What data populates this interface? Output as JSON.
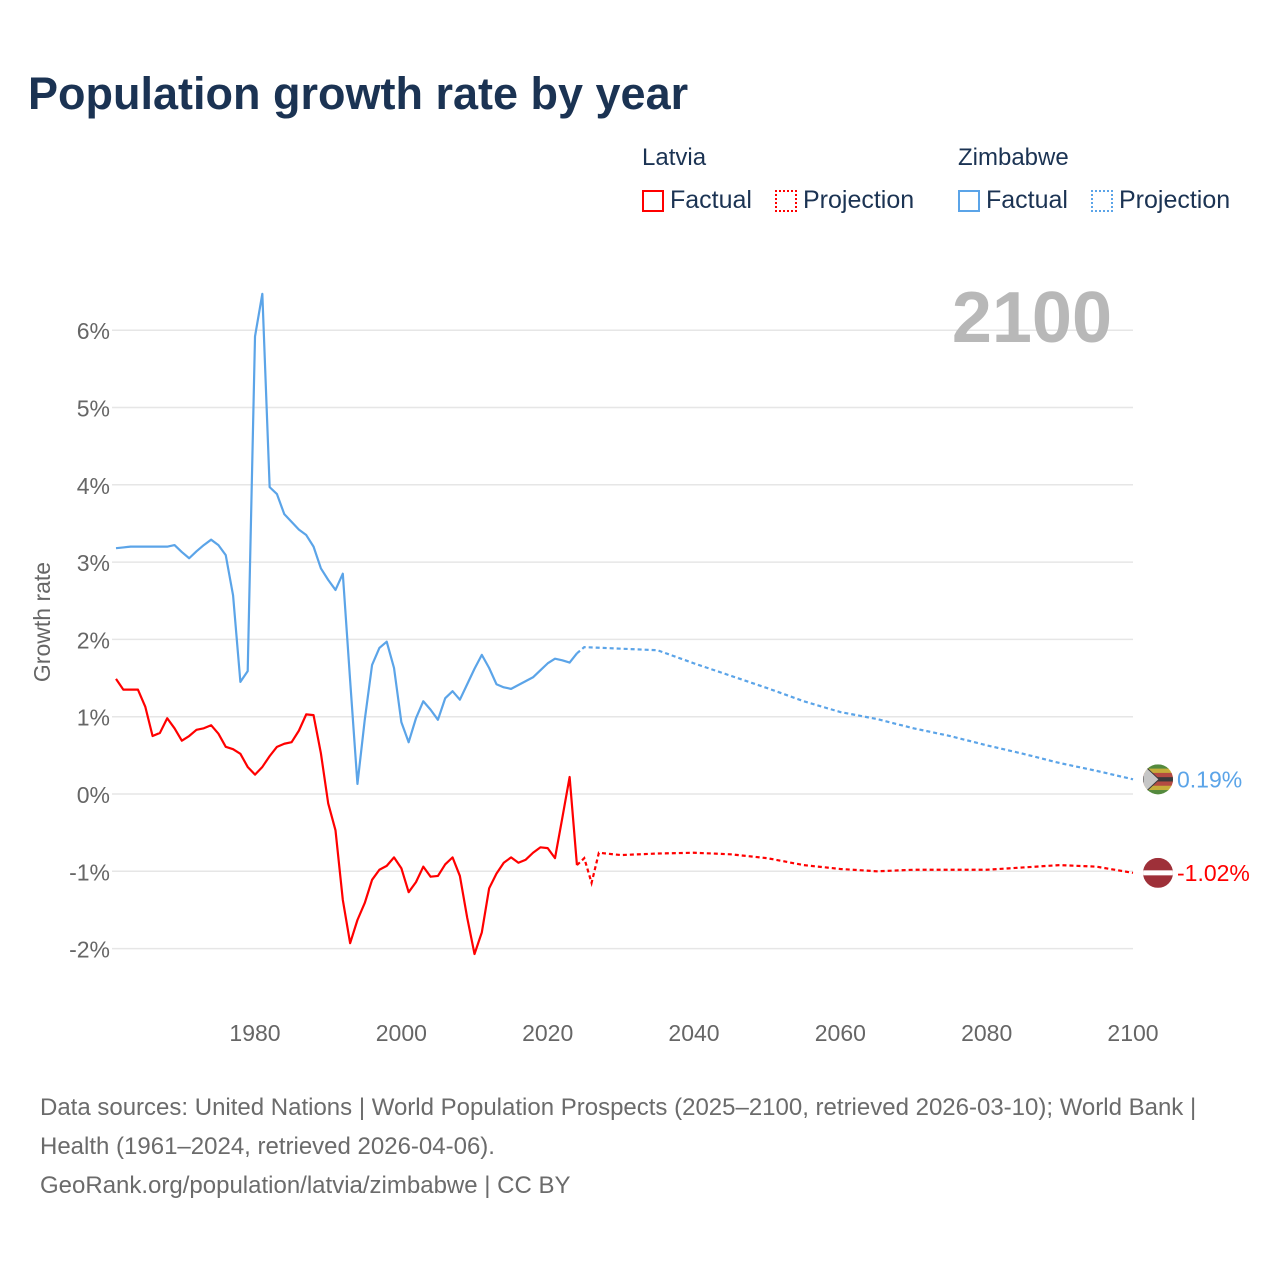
{
  "chart_data": {
    "type": "line",
    "title": "Population growth rate by year",
    "ylabel": "Growth rate",
    "xlabel": "",
    "year_display": "2100",
    "xlim": [
      1961,
      2100
    ],
    "ylim": [
      -2.6,
      6.6
    ],
    "x_ticks": [
      1980,
      2000,
      2020,
      2040,
      2060,
      2080,
      2100
    ],
    "y_ticks": [
      {
        "v": 6,
        "label": "6%"
      },
      {
        "v": 5,
        "label": "5%"
      },
      {
        "v": 4,
        "label": "4%"
      },
      {
        "v": 3,
        "label": "3%"
      },
      {
        "v": 2,
        "label": "2%"
      },
      {
        "v": 1,
        "label": "1%"
      },
      {
        "v": 0,
        "label": "0%"
      },
      {
        "v": -1,
        "label": "-1%"
      },
      {
        "v": -2,
        "label": "-2%"
      }
    ],
    "legend": {
      "groups": [
        {
          "name": "Latvia",
          "color": "#ff0000",
          "factual": "Factual",
          "projection": "Projection"
        },
        {
          "name": "Zimbabwe",
          "color": "#5ba4e8",
          "factual": "Factual",
          "projection": "Projection"
        }
      ]
    },
    "series": [
      {
        "name": "Zimbabwe",
        "color": "#5ba4e8",
        "end_label": "0.19%",
        "factual": {
          "start": 1961,
          "values": [
            3.18,
            3.19,
            3.2,
            3.2,
            3.2,
            3.2,
            3.2,
            3.2,
            3.22,
            3.13,
            3.05,
            3.14,
            3.22,
            3.29,
            3.22,
            3.09,
            2.57,
            1.45,
            1.59,
            5.92,
            6.47,
            3.97,
            3.88,
            3.62,
            3.52,
            3.42,
            3.35,
            3.2,
            2.92,
            2.77,
            2.64,
            2.85,
            1.47,
            0.13,
            0.96,
            1.67,
            1.89,
            1.97,
            1.63,
            0.93,
            0.67,
            0.98,
            1.2,
            1.09,
            0.96,
            1.24,
            1.33,
            1.22,
            1.42,
            1.62,
            1.8,
            1.63,
            1.42,
            1.38,
            1.36,
            1.41,
            1.46,
            1.51,
            1.6,
            1.69,
            1.75,
            1.73,
            1.7,
            1.82
          ]
        },
        "projection": {
          "years": [
            2025,
            2030,
            2035,
            2040,
            2045,
            2050,
            2055,
            2060,
            2065,
            2070,
            2075,
            2080,
            2085,
            2090,
            2095,
            2100
          ],
          "values": [
            1.9,
            1.88,
            1.86,
            1.69,
            1.53,
            1.37,
            1.2,
            1.06,
            0.97,
            0.85,
            0.75,
            0.63,
            0.52,
            0.4,
            0.3,
            0.19
          ]
        }
      },
      {
        "name": "Latvia",
        "color": "#ff0000",
        "end_label": "-1.02%",
        "factual": {
          "start": 1961,
          "values": [
            1.49,
            1.35,
            1.35,
            1.35,
            1.13,
            0.75,
            0.79,
            0.98,
            0.85,
            0.69,
            0.75,
            0.83,
            0.85,
            0.89,
            0.78,
            0.61,
            0.58,
            0.52,
            0.35,
            0.25,
            0.35,
            0.49,
            0.61,
            0.65,
            0.67,
            0.82,
            1.03,
            1.02,
            0.53,
            -0.12,
            -0.47,
            -1.37,
            -1.93,
            -1.63,
            -1.41,
            -1.11,
            -0.98,
            -0.93,
            -0.82,
            -0.96,
            -1.27,
            -1.14,
            -0.94,
            -1.07,
            -1.06,
            -0.91,
            -0.82,
            -1.06,
            -1.6,
            -2.07,
            -1.79,
            -1.22,
            -1.03,
            -0.89,
            -0.82,
            -0.89,
            -0.85,
            -0.76,
            -0.69,
            -0.7,
            -0.83,
            -0.31,
            0.22,
            -0.92
          ]
        },
        "projection": {
          "years": [
            2025,
            2026,
            2027,
            2030,
            2035,
            2040,
            2045,
            2050,
            2055,
            2060,
            2065,
            2070,
            2075,
            2080,
            2085,
            2090,
            2095,
            2100
          ],
          "values": [
            -0.83,
            -1.15,
            -0.76,
            -0.79,
            -0.77,
            -0.76,
            -0.78,
            -0.83,
            -0.92,
            -0.97,
            -1.0,
            -0.98,
            -0.98,
            -0.98,
            -0.95,
            -0.92,
            -0.94,
            -1.02
          ]
        }
      }
    ]
  },
  "footer": {
    "sources": "Data sources: United Nations | World Population Prospects (2025–2100, retrieved 2026-03-10); World Bank | Health (1961–2024, retrieved 2026-04-06).",
    "link": "GeoRank.org/population/latvia/zimbabwe | CC BY"
  }
}
